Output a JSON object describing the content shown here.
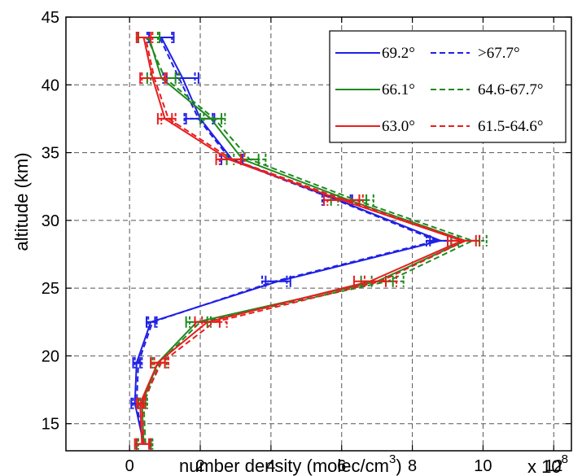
{
  "chart_data": {
    "type": "line",
    "title": "",
    "xlabel": "number density (molec/cm",
    "xlabel_superscript": "3",
    "xlabel_close": ")",
    "ylabel": "altitude (km)",
    "x_exponent_prefix": "x 10",
    "x_exponent_power": "8",
    "xlim": [
      -1.8,
      12.5
    ],
    "ylim": [
      13,
      45
    ],
    "xticks": [
      0,
      2,
      4,
      6,
      8,
      10,
      12
    ],
    "xtick_labels": [
      "0",
      "2",
      "4",
      "6",
      "8",
      "10",
      "12"
    ],
    "yticks": [
      15,
      20,
      25,
      30,
      35,
      40,
      45
    ],
    "ytick_labels": [
      "15",
      "20",
      "25",
      "30",
      "35",
      "40",
      "45"
    ],
    "grid": true,
    "legend_position": "top-right",
    "series": [
      {
        "name": "69.2°",
        "color": "#1f1fe6",
        "style": "solid",
        "altitude": [
          13.5,
          16.5,
          19.5,
          22.5,
          25.5,
          28.5,
          31.5,
          34.5,
          37.5,
          40.5,
          43.5
        ],
        "x": [
          0.4,
          0.15,
          0.2,
          0.6,
          4.2,
          8.8,
          5.9,
          2.9,
          2.0,
          1.5,
          0.9
        ],
        "err": [
          0.2,
          0.1,
          0.1,
          0.12,
          0.35,
          0.3,
          0.4,
          0.3,
          0.4,
          0.45,
          0.35
        ]
      },
      {
        "name": ">67.7°",
        "color": "#1f1fe6",
        "style": "dashed",
        "altitude": [
          13.5,
          16.5,
          19.5,
          22.5,
          25.5,
          28.5,
          31.5,
          34.5,
          37.5,
          40.5,
          43.5
        ],
        "x": [
          0.4,
          0.2,
          0.25,
          0.65,
          4.1,
          8.7,
          5.85,
          2.85,
          1.95,
          1.4,
          0.85
        ],
        "err": [
          0.2,
          0.1,
          0.1,
          0.12,
          0.35,
          0.3,
          0.4,
          0.3,
          0.4,
          0.45,
          0.35
        ]
      },
      {
        "name": "66.1°",
        "color": "#1e8a1e",
        "style": "solid",
        "altitude": [
          13.5,
          16.5,
          19.5,
          22.5,
          25.5,
          28.5,
          31.5,
          34.5,
          37.5,
          40.5,
          43.5
        ],
        "x": [
          0.4,
          0.35,
          0.8,
          1.9,
          7.0,
          9.5,
          6.2,
          3.2,
          2.3,
          0.9,
          0.55
        ],
        "err": [
          0.2,
          0.1,
          0.2,
          0.3,
          0.45,
          0.4,
          0.5,
          0.45,
          0.3,
          0.4,
          0.3
        ]
      },
      {
        "name": "64.6-67.7°",
        "color": "#1e8a1e",
        "style": "dashed",
        "altitude": [
          13.5,
          16.5,
          19.5,
          22.5,
          25.5,
          28.5,
          31.5,
          34.5,
          37.5,
          40.5,
          43.5
        ],
        "x": [
          0.45,
          0.4,
          0.85,
          2.0,
          7.3,
          9.7,
          6.4,
          3.4,
          2.4,
          1.0,
          0.5
        ],
        "err": [
          0.2,
          0.1,
          0.2,
          0.3,
          0.45,
          0.4,
          0.5,
          0.45,
          0.3,
          0.4,
          0.3
        ]
      },
      {
        "name": "63.0°",
        "color": "#e81e1e",
        "style": "solid",
        "altitude": [
          13.5,
          16.5,
          19.5,
          22.5,
          25.5,
          28.5,
          31.5,
          34.5,
          37.5,
          40.5,
          43.5
        ],
        "x": [
          0.35,
          0.3,
          0.8,
          2.2,
          6.8,
          9.4,
          6.0,
          2.8,
          1.0,
          0.65,
          0.4
        ],
        "err": [
          0.2,
          0.1,
          0.2,
          0.35,
          0.45,
          0.4,
          0.5,
          0.35,
          0.2,
          0.35,
          0.2
        ]
      },
      {
        "name": "61.5-64.6°",
        "color": "#e81e1e",
        "style": "dashed",
        "altitude": [
          13.5,
          16.5,
          19.5,
          22.5,
          25.5,
          28.5,
          31.5,
          34.5,
          37.5,
          40.5,
          43.5
        ],
        "x": [
          0.4,
          0.35,
          0.9,
          2.4,
          7.1,
          9.5,
          6.1,
          2.9,
          1.1,
          0.7,
          0.45
        ],
        "err": [
          0.2,
          0.1,
          0.2,
          0.35,
          0.45,
          0.4,
          0.5,
          0.35,
          0.2,
          0.35,
          0.2
        ]
      }
    ]
  }
}
